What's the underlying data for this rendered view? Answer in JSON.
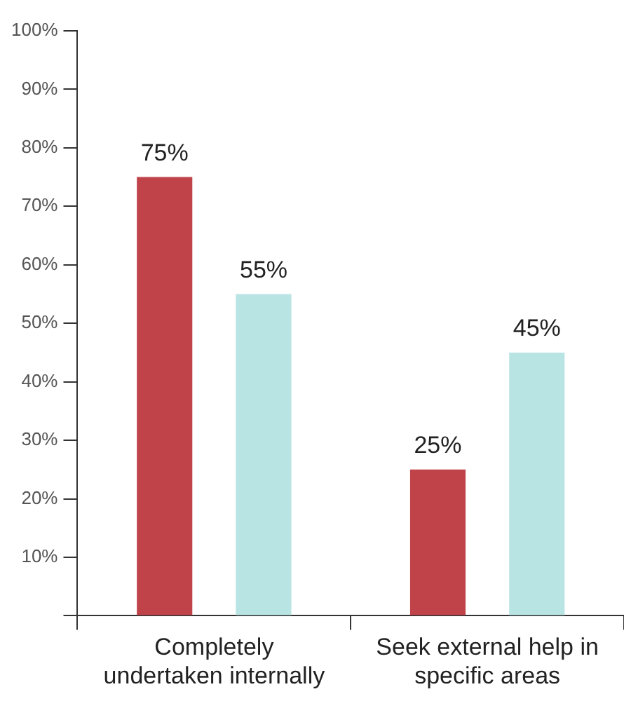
{
  "chart_data": {
    "type": "bar",
    "categories": [
      "Completely undertaken internally",
      "Seek external help in specific areas"
    ],
    "series": [
      {
        "color": "#c0434a",
        "values": [
          75,
          25
        ]
      },
      {
        "color": "#b9e4e4",
        "values": [
          55,
          45
        ]
      }
    ],
    "ylim": [
      0,
      100
    ],
    "yticks": [
      {
        "value": 0,
        "label": null
      },
      {
        "value": 10,
        "label": "10%"
      },
      {
        "value": 20,
        "label": "20%"
      },
      {
        "value": 30,
        "label": "30%"
      },
      {
        "value": 40,
        "label": "40%"
      },
      {
        "value": 50,
        "label": "50%"
      },
      {
        "value": 60,
        "label": "60%"
      },
      {
        "value": 70,
        "label": "70%"
      },
      {
        "value": 80,
        "label": "80%"
      },
      {
        "value": 90,
        "label": "90%"
      },
      {
        "value": 100,
        "label": "100%"
      }
    ],
    "value_labels": [
      [
        "75%",
        "25%"
      ],
      [
        "55%",
        "45%"
      ]
    ],
    "grid": false,
    "legend": false
  }
}
